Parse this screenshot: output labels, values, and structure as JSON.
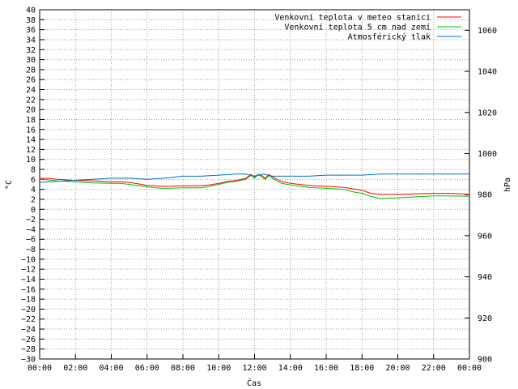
{
  "chart_data": {
    "type": "line",
    "xlabel": "Čas",
    "ylabel": "°C",
    "y2label": "hPa",
    "x_ticks": [
      "00:00",
      "02:00",
      "04:00",
      "06:00",
      "08:00",
      "10:00",
      "12:00",
      "14:00",
      "16:00",
      "18:00",
      "20:00",
      "22:00",
      "00:00"
    ],
    "xlim": [
      0,
      24
    ],
    "ylim": [
      -30,
      40
    ],
    "y_ticks": [
      40,
      38,
      36,
      34,
      32,
      30,
      28,
      26,
      24,
      22,
      20,
      18,
      16,
      14,
      12,
      10,
      8,
      6,
      4,
      2,
      0,
      -2,
      -4,
      -6,
      -8,
      -10,
      -12,
      -14,
      -16,
      -18,
      -20,
      -22,
      -24,
      -26,
      -28,
      -30
    ],
    "y2lim": [
      900,
      1070
    ],
    "y2_ticks": [
      1060,
      1040,
      1020,
      1000,
      980,
      960,
      940,
      920,
      900
    ],
    "grid": true,
    "legend_position": "top-right",
    "series": [
      {
        "name": "Venkovní teplota v meteo stanici",
        "color": "#ff0000",
        "axis": "left",
        "x": [
          0,
          0.5,
          1,
          1.5,
          2,
          3,
          4,
          4.5,
          5,
          6,
          6.5,
          7,
          8,
          9,
          9.5,
          10,
          10.5,
          11,
          11.5,
          11.8,
          12,
          12.2,
          12.4,
          12.6,
          12.8,
          13,
          13.5,
          14,
          15,
          16,
          17,
          17.5,
          18,
          18.5,
          19,
          20,
          21,
          22,
          23,
          24
        ],
        "values": [
          6.2,
          6.2,
          6.0,
          5.9,
          5.8,
          5.7,
          5.5,
          5.5,
          5.4,
          4.8,
          4.7,
          4.6,
          4.7,
          4.7,
          4.9,
          5.2,
          5.6,
          5.8,
          6.2,
          7.0,
          6.5,
          7.0,
          6.8,
          6.2,
          7.0,
          6.5,
          5.6,
          5.2,
          4.8,
          4.6,
          4.4,
          4.1,
          3.8,
          3.2,
          3.0,
          3.0,
          3.1,
          3.2,
          3.2,
          3.0
        ]
      },
      {
        "name": "Venkovní teplota 5 cm nad zemí",
        "color": "#00c000",
        "axis": "left",
        "x": [
          0,
          0.5,
          1,
          1.5,
          2,
          3,
          4,
          4.5,
          5,
          6,
          6.5,
          7,
          8,
          9,
          9.5,
          10,
          10.5,
          11,
          11.5,
          11.8,
          12,
          12.2,
          12.4,
          12.6,
          12.8,
          13,
          13.5,
          14,
          15,
          16,
          17,
          17.5,
          18,
          18.5,
          19,
          20,
          21,
          22,
          23,
          24
        ],
        "values": [
          6.0,
          5.9,
          5.7,
          5.6,
          5.5,
          5.3,
          5.2,
          5.2,
          5.0,
          4.5,
          4.3,
          4.2,
          4.3,
          4.3,
          4.6,
          5.0,
          5.4,
          5.6,
          6.0,
          6.8,
          6.2,
          7.0,
          6.5,
          6.0,
          6.8,
          6.2,
          5.2,
          4.9,
          4.4,
          4.2,
          4.0,
          3.5,
          3.2,
          2.6,
          2.2,
          2.3,
          2.5,
          2.7,
          2.7,
          2.6
        ]
      },
      {
        "name": "Atmosférický tlak",
        "color": "#0070c0",
        "axis": "right",
        "x": [
          0,
          1,
          2,
          3,
          4,
          5,
          6,
          7,
          8,
          9,
          10,
          11,
          11.5,
          12,
          12.5,
          13,
          14,
          15,
          16,
          17,
          18,
          19,
          20,
          21,
          22,
          23,
          24
        ],
        "values": [
          986,
          986.5,
          987,
          987.5,
          988,
          988,
          987.5,
          988,
          989,
          989,
          989.5,
          990,
          990,
          989,
          990,
          989,
          989,
          989,
          989.5,
          989.5,
          989.5,
          990,
          990,
          990,
          990,
          990,
          990
        ]
      }
    ]
  }
}
